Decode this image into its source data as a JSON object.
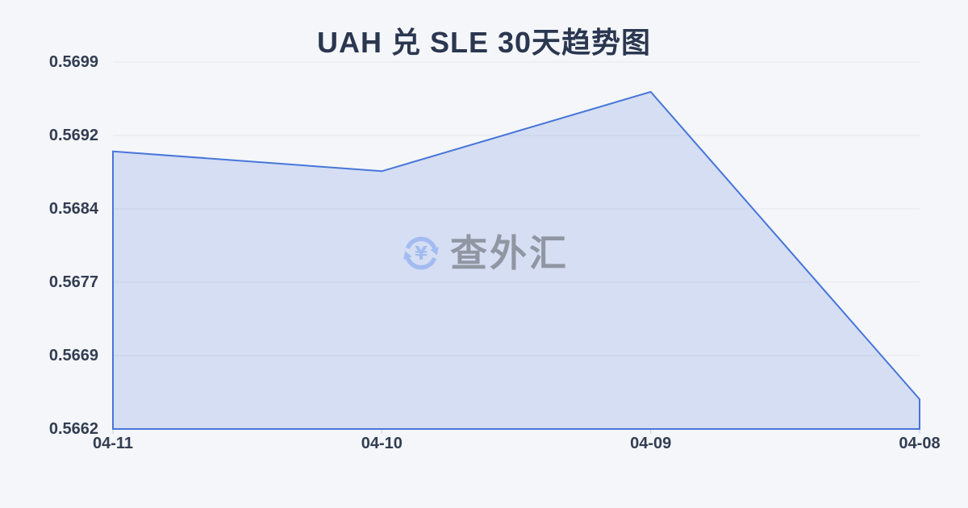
{
  "page": {
    "background": "#f4f6f9"
  },
  "chart_data": {
    "type": "area",
    "title": "UAH 兑 SLE 30天趋势图",
    "categories": [
      "04-11",
      "04-10",
      "04-09",
      "04-08"
    ],
    "values": [
      0.569,
      0.5688,
      0.5696,
      0.5665
    ],
    "yticks": [
      "0.5699",
      "0.5692",
      "0.5684",
      "0.5677",
      "0.5669",
      "0.5662"
    ],
    "ylim": [
      0.5662,
      0.5699
    ],
    "xlabel": "",
    "ylabel": "",
    "grid": true,
    "legend_position": "none",
    "x_axis_reversed_dates": true,
    "colors": {
      "line": "#4876d9",
      "fill": "rgba(91,130,221,0.20)",
      "grid": "#e4e7ed",
      "tick": "#c9cdd6",
      "axis_text": "#333d52",
      "title_text": "#2b3750"
    }
  },
  "watermark": {
    "text": "查外汇",
    "symbol": "¥",
    "icon_color": "#a3bcf0",
    "text_color": "#9096a2"
  }
}
